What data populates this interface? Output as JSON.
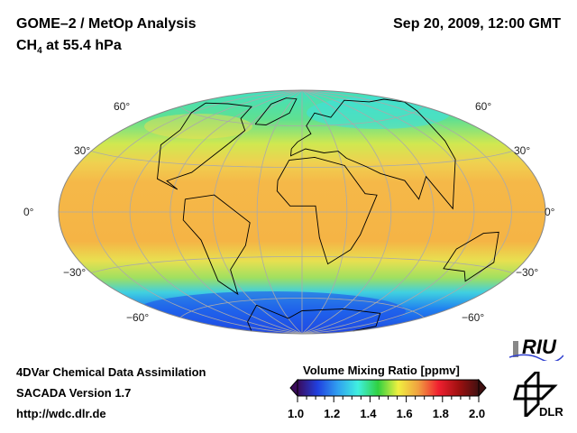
{
  "header": {
    "title": "GOME–2 / MetOp Analysis",
    "species": "CH",
    "species_sub": "4",
    "level": " at 55.4 hPa",
    "datetime": "Sep 20, 2009, 12:00 GMT"
  },
  "map": {
    "projection": "Hammer",
    "lat_labels_left": [
      "60°",
      "30°",
      "0°",
      "−30°",
      "−60°"
    ],
    "lat_labels_right": [
      "60°",
      "30°",
      "0°",
      "−30°",
      "−60°"
    ]
  },
  "footer": {
    "line1": "4DVar Chemical Data Assimilation",
    "line2": "SACADA Version 1.7",
    "line3": "http://wdc.dlr.de"
  },
  "colorbar": {
    "title": "Volume Mixing Ratio [ppmv]",
    "ticks": [
      "1.0",
      "1.2",
      "1.4",
      "1.6",
      "1.8",
      "2.0"
    ],
    "range": [
      1.0,
      2.0
    ],
    "colors": [
      "#3a0a5a",
      "#2040e0",
      "#30a0f0",
      "#40f0e0",
      "#30d040",
      "#f0f040",
      "#f0a040",
      "#f02030",
      "#a01010",
      "#401010"
    ]
  },
  "logos": {
    "riu": "RIU",
    "dlr": "DLR"
  }
}
